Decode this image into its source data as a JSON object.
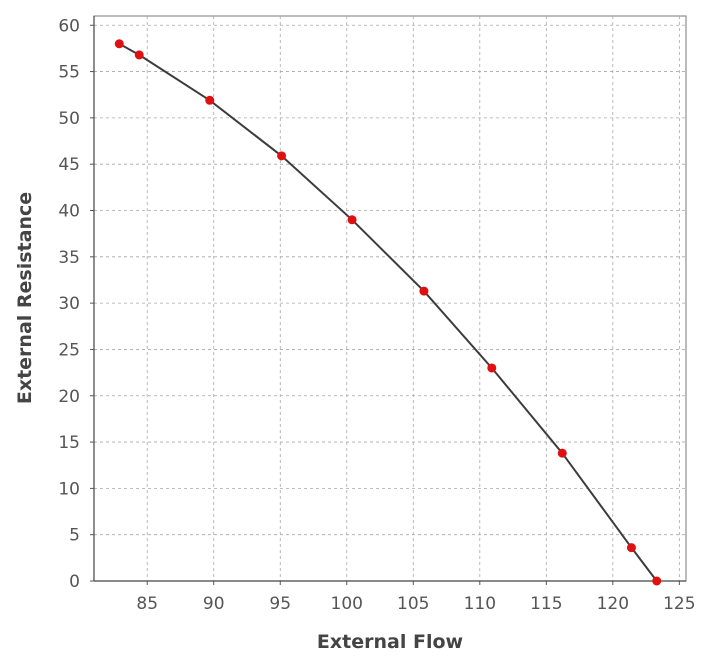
{
  "chart_data": {
    "type": "line",
    "title": "",
    "xlabel": "External Flow",
    "ylabel": "External Resistance",
    "xlim": [
      81,
      125.5
    ],
    "ylim": [
      0,
      61
    ],
    "xticks": [
      85,
      90,
      95,
      100,
      105,
      110,
      115,
      120,
      125
    ],
    "yticks": [
      0,
      5,
      10,
      15,
      20,
      25,
      30,
      35,
      40,
      45,
      50,
      55,
      60
    ],
    "grid": true,
    "legend": "none",
    "line_color": "#3c3c3c",
    "marker_color": "#e01010",
    "series": [
      {
        "x": [
          82.9,
          84.4,
          89.7,
          95.1,
          100.4,
          105.8,
          110.9,
          116.2,
          121.4,
          123.3
        ],
        "y": [
          58.0,
          56.8,
          51.9,
          45.9,
          39.0,
          31.3,
          23.0,
          13.8,
          3.6,
          0.0
        ]
      }
    ]
  }
}
